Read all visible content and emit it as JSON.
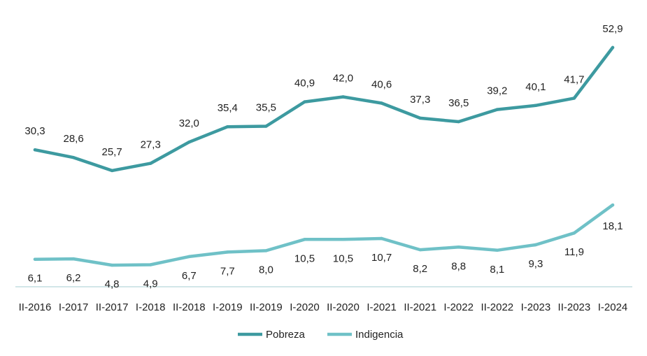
{
  "chart_data": {
    "type": "line",
    "categories": [
      "II-2016",
      "I-2017",
      "II-2017",
      "I-2018",
      "II-2018",
      "I-2019",
      "II-2019",
      "I-2020",
      "II-2020",
      "I-2021",
      "II-2021",
      "I-2022",
      "II-2022",
      "I-2023",
      "II-2023",
      "I-2024"
    ],
    "series": [
      {
        "name": "Pobreza",
        "color": "#3d9aa0",
        "values": [
          30.3,
          28.6,
          25.7,
          27.3,
          32.0,
          35.4,
          35.5,
          40.9,
          42.0,
          40.6,
          37.3,
          36.5,
          39.2,
          40.1,
          41.7,
          52.9
        ],
        "labels": [
          "30,3",
          "28,6",
          "25,7",
          "27,3",
          "32,0",
          "35,4",
          "35,5",
          "40,9",
          "42,0",
          "40,6",
          "37,3",
          "36,5",
          "39,2",
          "40,1",
          "41,7",
          "52,9"
        ]
      },
      {
        "name": "Indigencia",
        "color": "#6fc1c7",
        "values": [
          6.1,
          6.2,
          4.8,
          4.9,
          6.7,
          7.7,
          8.0,
          10.5,
          10.5,
          10.7,
          8.2,
          8.8,
          8.1,
          9.3,
          11.9,
          18.1
        ],
        "labels": [
          "6,1",
          "6,2",
          "4,8",
          "4,9",
          "6,7",
          "7,7",
          "8,0",
          "10,5",
          "10,5",
          "10,7",
          "8,2",
          "8,8",
          "8,1",
          "9,3",
          "11,9",
          "18,1"
        ]
      }
    ],
    "legend": "bottom",
    "grid": false
  }
}
